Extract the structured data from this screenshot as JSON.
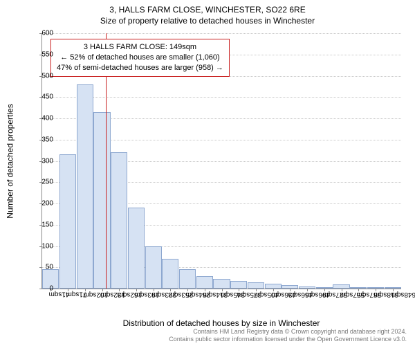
{
  "title_line1": "3, HALLS FARM CLOSE, WINCHESTER, SO22 6RE",
  "title_line2": "Size of property relative to detached houses in Winchester",
  "chart": {
    "type": "histogram",
    "ylabel": "Number of detached properties",
    "xlabel": "Distribution of detached houses by size in Winchester",
    "ylim": [
      0,
      600
    ],
    "ytick_step": 50,
    "bar_fill": "#d6e2f3",
    "bar_border": "#8ea8d0",
    "grid_color": "#c7c7c7",
    "axis_color": "#888888",
    "background": "#ffffff",
    "ref_line_color": "#c81e1e",
    "ref_value_sqm": 149,
    "x_categories": [
      "41sqm",
      "71sqm",
      "102sqm",
      "132sqm",
      "162sqm",
      "193sqm",
      "223sqm",
      "253sqm",
      "284sqm",
      "314sqm",
      "345sqm",
      "375sqm",
      "405sqm",
      "436sqm",
      "466sqm",
      "496sqm",
      "527sqm",
      "557sqm",
      "587sqm",
      "618sqm",
      "648sqm"
    ],
    "values": [
      45,
      315,
      480,
      415,
      320,
      190,
      100,
      70,
      45,
      30,
      22,
      18,
      15,
      12,
      8,
      5,
      3,
      10,
      2,
      3,
      2
    ]
  },
  "callout": {
    "line1": "3 HALLS FARM CLOSE: 149sqm",
    "line2": "← 52% of detached houses are smaller (1,060)",
    "line3": "47% of semi-detached houses are larger (958) →"
  },
  "footer": {
    "line1": "Contains HM Land Registry data © Crown copyright and database right 2024.",
    "line2": "Contains public sector information licensed under the Open Government Licence v3.0."
  }
}
